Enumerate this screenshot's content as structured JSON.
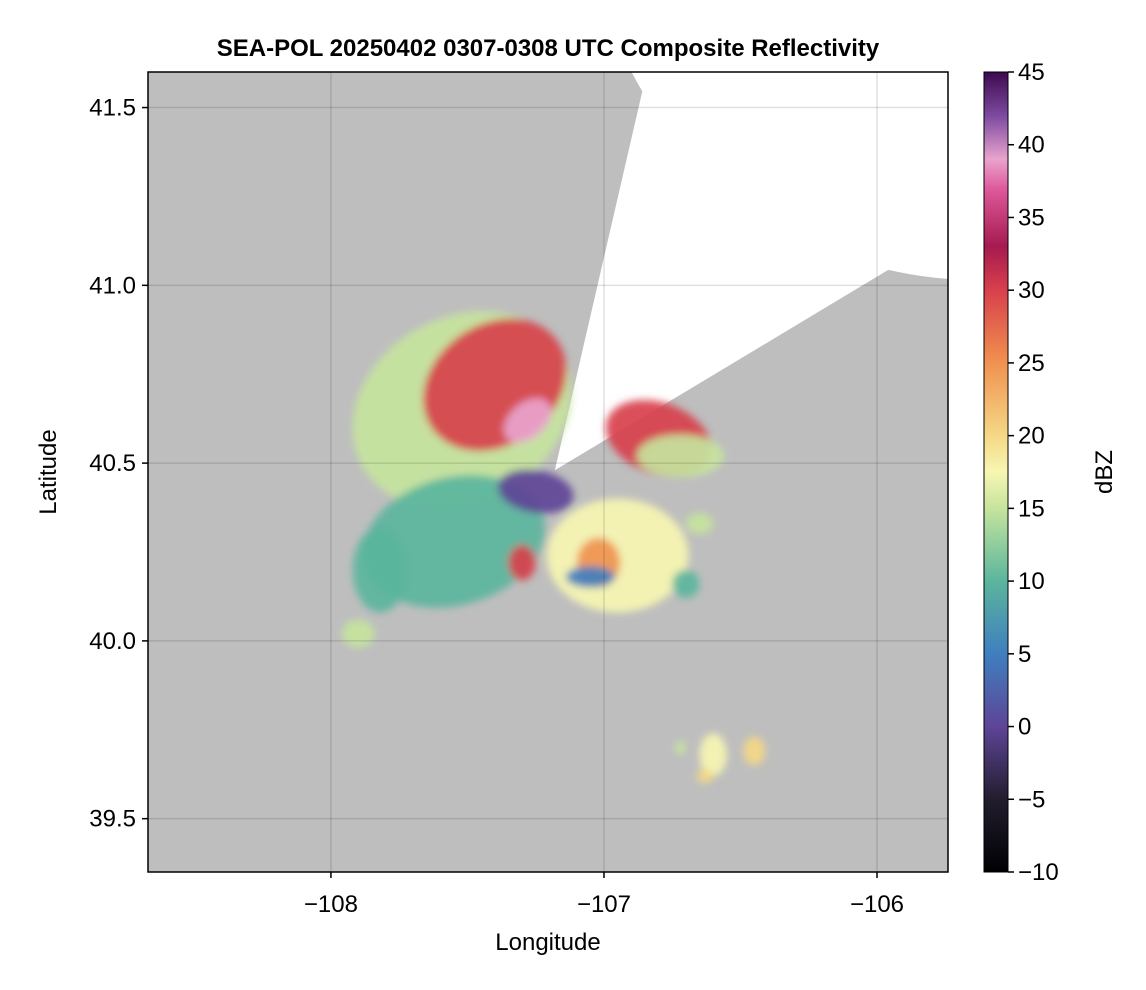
{
  "chart_data": {
    "type": "heatmap",
    "title": "SEA-POL 20250402 0307-0308 UTC Composite Reflectivity",
    "xlabel": "Longitude",
    "ylabel": "Latitude",
    "xlim": [
      -108.67,
      -105.74
    ],
    "ylim": [
      39.35,
      41.6
    ],
    "x_ticks": [
      {
        "value": -108,
        "label": "−108"
      },
      {
        "value": -107,
        "label": "−107"
      },
      {
        "value": -106,
        "label": "−106"
      }
    ],
    "y_ticks": [
      {
        "value": 39.5,
        "label": "39.5"
      },
      {
        "value": 40.0,
        "label": "40.0"
      },
      {
        "value": 40.5,
        "label": "40.5"
      },
      {
        "value": 41.0,
        "label": "41.0"
      },
      {
        "value": 41.5,
        "label": "41.5"
      }
    ],
    "grid": true,
    "radar_center": {
      "lon": -107.18,
      "lat": 40.48
    },
    "background_color": "#bebebe",
    "coverage_color": "#ffffff",
    "colorbar": {
      "label": "dBZ",
      "min": -10,
      "max": 45,
      "ticks": [
        {
          "value": -10,
          "label": "−10"
        },
        {
          "value": -5,
          "label": "−5"
        },
        {
          "value": 0,
          "label": "0"
        },
        {
          "value": 5,
          "label": "5"
        },
        {
          "value": 10,
          "label": "10"
        },
        {
          "value": 15,
          "label": "15"
        },
        {
          "value": 20,
          "label": "20"
        },
        {
          "value": 25,
          "label": "25"
        },
        {
          "value": 30,
          "label": "30"
        },
        {
          "value": 35,
          "label": "35"
        },
        {
          "value": 40,
          "label": "40"
        },
        {
          "value": 45,
          "label": "45"
        }
      ],
      "stops": [
        {
          "value": -10,
          "color": "#000004"
        },
        {
          "value": -5,
          "color": "#221d2e"
        },
        {
          "value": 0,
          "color": "#5e4597"
        },
        {
          "value": 5,
          "color": "#3f7fbf"
        },
        {
          "value": 10,
          "color": "#5bb59d"
        },
        {
          "value": 15,
          "color": "#c6e49d"
        },
        {
          "value": 17.5,
          "color": "#f7f6b2"
        },
        {
          "value": 20,
          "color": "#f5d886"
        },
        {
          "value": 25,
          "color": "#f0924f"
        },
        {
          "value": 30,
          "color": "#d8404c"
        },
        {
          "value": 33,
          "color": "#a61a4f"
        },
        {
          "value": 37,
          "color": "#de5a9c"
        },
        {
          "value": 39,
          "color": "#e9a3cd"
        },
        {
          "value": 42,
          "color": "#7c4aa0"
        },
        {
          "value": 45,
          "color": "#3d0a4f"
        }
      ]
    },
    "echo_regions": [
      {
        "name": "northwest-band",
        "lon": -107.4,
        "lat": 40.72,
        "rx": 0.28,
        "ry": 0.17,
        "rotate": 35,
        "dbz": 28
      },
      {
        "name": "northwest-outer",
        "lon": -107.52,
        "lat": 40.65,
        "rx": 0.42,
        "ry": 0.26,
        "rotate": 30,
        "dbz": 14
      },
      {
        "name": "northeast-cell",
        "lon": -106.8,
        "lat": 40.57,
        "rx": 0.2,
        "ry": 0.1,
        "rotate": -20,
        "dbz": 30
      },
      {
        "name": "east-fringe",
        "lon": -106.72,
        "lat": 40.52,
        "rx": 0.16,
        "ry": 0.06,
        "rotate": 0,
        "dbz": 14
      },
      {
        "name": "center-core",
        "lon": -107.25,
        "lat": 40.42,
        "rx": 0.14,
        "ry": 0.06,
        "rotate": -10,
        "dbz": 0
      },
      {
        "name": "southwest-area",
        "lon": -107.55,
        "lat": 40.28,
        "rx": 0.34,
        "ry": 0.18,
        "rotate": 15,
        "dbz": 12
      },
      {
        "name": "southwest-patch",
        "lon": -107.82,
        "lat": 40.2,
        "rx": 0.1,
        "ry": 0.12,
        "rotate": 0,
        "dbz": 11
      },
      {
        "name": "far-west-blob",
        "lon": -107.9,
        "lat": 40.02,
        "rx": 0.06,
        "ry": 0.04,
        "rotate": 0,
        "dbz": 15
      },
      {
        "name": "south-central",
        "lon": -106.95,
        "lat": 40.24,
        "rx": 0.26,
        "ry": 0.16,
        "rotate": 0,
        "dbz": 18
      },
      {
        "name": "south-cell-1",
        "lon": -107.02,
        "lat": 40.22,
        "rx": 0.08,
        "ry": 0.07,
        "rotate": 0,
        "dbz": 26
      },
      {
        "name": "south-cell-2",
        "lon": -107.3,
        "lat": 40.22,
        "rx": 0.05,
        "ry": 0.05,
        "rotate": 0,
        "dbz": 30
      },
      {
        "name": "blue-streak",
        "lon": -107.05,
        "lat": 40.18,
        "rx": 0.09,
        "ry": 0.03,
        "rotate": 0,
        "dbz": 4
      },
      {
        "name": "east-small",
        "lon": -106.65,
        "lat": 40.33,
        "rx": 0.05,
        "ry": 0.03,
        "rotate": 0,
        "dbz": 13
      },
      {
        "name": "east-south",
        "lon": -106.7,
        "lat": 40.16,
        "rx": 0.05,
        "ry": 0.04,
        "rotate": 0,
        "dbz": 12
      },
      {
        "name": "southeast-1",
        "lon": -106.6,
        "lat": 39.68,
        "rx": 0.05,
        "ry": 0.06,
        "rotate": 0,
        "dbz": 18
      },
      {
        "name": "southeast-2",
        "lon": -106.45,
        "lat": 39.69,
        "rx": 0.04,
        "ry": 0.04,
        "rotate": 0,
        "dbz": 20
      },
      {
        "name": "southeast-3",
        "lon": -106.63,
        "lat": 39.62,
        "rx": 0.03,
        "ry": 0.02,
        "rotate": 0,
        "dbz": 22
      },
      {
        "name": "southeast-4",
        "lon": -106.72,
        "lat": 39.7,
        "rx": 0.02,
        "ry": 0.02,
        "rotate": 0,
        "dbz": 16
      },
      {
        "name": "north-core",
        "lon": -107.28,
        "lat": 40.62,
        "rx": 0.1,
        "ry": 0.05,
        "rotate": 40,
        "dbz": 40
      }
    ]
  }
}
